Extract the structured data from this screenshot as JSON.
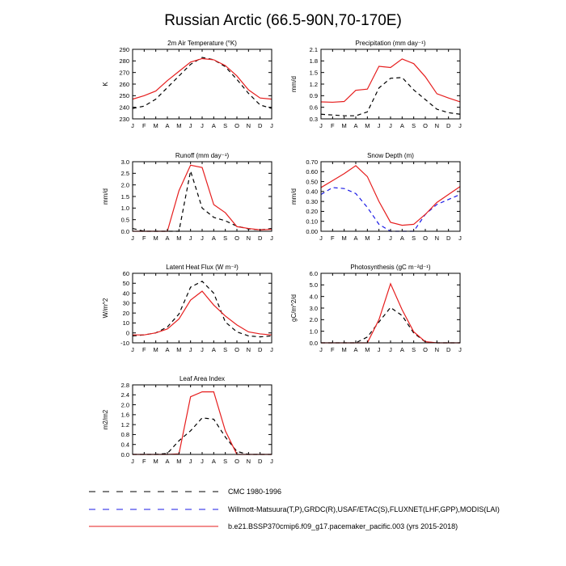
{
  "figure_title": "Russian Arctic (66.5-90N,70-170E)",
  "colors": {
    "cmc": "#000000",
    "obs": "#1a1ae6",
    "model": "#e61e1e"
  },
  "legend": [
    {
      "label": "CMC 1980-1996",
      "color": "#000000",
      "dash": "dashed"
    },
    {
      "label": "Willmott-Matsuura(T,P),GRDC(R),USAF/ETAC(S),FLUXNET(LHF,GPP),MODIS(LAI)",
      "color": "#1a1ae6",
      "dash": "dashed"
    },
    {
      "label": "b.e21.BSSP370cmip6.f09_g17.pacemaker_pacific.003 (yrs 2015-2018)",
      "color": "#e61e1e",
      "dash": "solid"
    }
  ],
  "chart_data": [
    {
      "type": "line",
      "id": "tsa",
      "title": "2m Air Temperature (°K)",
      "ylabel": "K",
      "categories": [
        "J",
        "F",
        "M",
        "A",
        "M",
        "J",
        "J",
        "A",
        "S",
        "O",
        "N",
        "D",
        "J"
      ],
      "ylim": [
        230,
        290
      ],
      "yticks": [
        230,
        240,
        250,
        260,
        270,
        280,
        290
      ],
      "ytick_labels": [
        "230",
        "240",
        "250",
        "260",
        "270",
        "280",
        "290"
      ],
      "series": [
        {
          "name": "CMC 1980-1996",
          "color": "#000000",
          "dash": "dashed",
          "values": [
            239,
            241,
            247,
            257,
            267,
            277,
            283,
            281,
            275,
            264,
            252,
            242,
            239
          ]
        },
        {
          "name": "model",
          "color": "#e61e1e",
          "dash": "solid",
          "values": [
            247,
            250,
            254,
            263,
            271,
            279,
            282,
            281,
            276,
            267,
            255,
            248,
            247
          ]
        }
      ]
    },
    {
      "type": "line",
      "id": "precip",
      "title": "Precipitation (mm day⁻¹)",
      "ylabel": "mm/d",
      "categories": [
        "J",
        "F",
        "M",
        "A",
        "M",
        "J",
        "J",
        "A",
        "S",
        "O",
        "N",
        "D",
        "J"
      ],
      "ylim": [
        0.3,
        2.1
      ],
      "yticks": [
        0.3,
        0.6,
        0.9,
        1.2,
        1.5,
        1.8,
        2.1
      ],
      "ytick_labels": [
        "0.3",
        "0.6",
        "0.9",
        "1.2",
        "1.5",
        "1.8",
        "2.1"
      ],
      "series": [
        {
          "name": "CMC 1980-1996",
          "color": "#000000",
          "dash": "dashed",
          "values": [
            0.42,
            0.4,
            0.38,
            0.38,
            0.48,
            1.1,
            1.35,
            1.37,
            1.05,
            0.8,
            0.55,
            0.46,
            0.42
          ]
        },
        {
          "name": "model",
          "color": "#e61e1e",
          "dash": "solid",
          "values": [
            0.74,
            0.73,
            0.75,
            1.04,
            1.07,
            1.66,
            1.63,
            1.85,
            1.73,
            1.39,
            0.95,
            0.84,
            0.74
          ]
        }
      ]
    },
    {
      "type": "line",
      "id": "runoff",
      "title": "Runoff (mm day⁻¹)",
      "ylabel": "mm/d",
      "categories": [
        "J",
        "F",
        "M",
        "A",
        "M",
        "J",
        "J",
        "A",
        "S",
        "O",
        "N",
        "D",
        "J"
      ],
      "ylim": [
        0.0,
        3.0
      ],
      "yticks": [
        0.0,
        0.5,
        1.0,
        1.5,
        2.0,
        2.5,
        3.0
      ],
      "ytick_labels": [
        "0.0",
        "0.5",
        "1.0",
        "1.5",
        "2.0",
        "2.5",
        "3.0"
      ],
      "series": [
        {
          "name": "CMC 1980-1996",
          "color": "#000000",
          "dash": "dashed",
          "values": [
            0.12,
            0.0,
            0.0,
            0.0,
            0.0,
            2.6,
            1.0,
            0.6,
            0.45,
            0.22,
            0.1,
            0.06,
            0.12
          ]
        },
        {
          "name": "model",
          "color": "#e61e1e",
          "dash": "solid",
          "values": [
            0.0,
            0.0,
            0.0,
            0.0,
            1.75,
            2.85,
            2.75,
            1.15,
            0.8,
            0.2,
            0.12,
            0.06,
            0.08
          ]
        }
      ]
    },
    {
      "type": "line",
      "id": "snowdp",
      "title": "Snow Depth (m)",
      "ylabel": "mm/d",
      "categories": [
        "J",
        "F",
        "M",
        "A",
        "M",
        "J",
        "J",
        "A",
        "S",
        "O",
        "N",
        "D",
        "J"
      ],
      "ylim": [
        0.0,
        0.7
      ],
      "yticks": [
        0.0,
        0.1,
        0.2,
        0.3,
        0.4,
        0.5,
        0.6,
        0.7
      ],
      "ytick_labels": [
        "0.00",
        "0.10",
        "0.20",
        "0.30",
        "0.40",
        "0.50",
        "0.60",
        "0.70"
      ],
      "series": [
        {
          "name": "Obs",
          "color": "#1a1ae6",
          "dash": "dashed",
          "values": [
            0.37,
            0.44,
            0.43,
            0.38,
            0.24,
            0.07,
            0.0,
            0.0,
            0.0,
            0.17,
            0.27,
            0.32,
            0.37
          ]
        },
        {
          "name": "model",
          "color": "#e61e1e",
          "dash": "solid",
          "values": [
            0.44,
            0.51,
            0.58,
            0.66,
            0.55,
            0.3,
            0.09,
            0.06,
            0.07,
            0.17,
            0.29,
            0.37,
            0.45
          ]
        }
      ]
    },
    {
      "type": "line",
      "id": "lhf",
      "title": "Latent Heat Flux (W m⁻²)",
      "ylabel": "W/m^2",
      "categories": [
        "J",
        "F",
        "M",
        "A",
        "M",
        "J",
        "J",
        "A",
        "S",
        "O",
        "N",
        "D",
        "J"
      ],
      "ylim": [
        -10,
        60
      ],
      "yticks": [
        -10,
        0,
        10,
        20,
        30,
        40,
        50,
        60
      ],
      "ytick_labels": [
        "-10",
        "0",
        "10",
        "20",
        "30",
        "40",
        "50",
        "60"
      ],
      "series": [
        {
          "name": "CMC 1980-1996",
          "color": "#000000",
          "dash": "dashed",
          "values": [
            -3,
            -2,
            0,
            6,
            19,
            46,
            52,
            40,
            11,
            1,
            -3,
            -4,
            -3
          ]
        },
        {
          "name": "model",
          "color": "#e61e1e",
          "dash": "solid",
          "values": [
            -2,
            -2,
            0,
            4,
            14,
            33,
            42,
            28,
            17,
            8,
            1,
            -1,
            -2
          ]
        }
      ]
    },
    {
      "type": "line",
      "id": "gpp",
      "title": "Photosynthesis (gC m⁻²d⁻¹)",
      "ylabel": "gC/m^2/d",
      "categories": [
        "J",
        "F",
        "M",
        "A",
        "M",
        "J",
        "J",
        "A",
        "S",
        "O",
        "N",
        "D",
        "J"
      ],
      "ylim": [
        0.0,
        6.0
      ],
      "yticks": [
        0.0,
        1.0,
        2.0,
        3.0,
        4.0,
        5.0,
        6.0
      ],
      "ytick_labels": [
        "0.0",
        "1.0",
        "2.0",
        "3.0",
        "4.0",
        "5.0",
        "6.0"
      ],
      "series": [
        {
          "name": "CMC 1980-1996",
          "color": "#000000",
          "dash": "dashed",
          "values": [
            0,
            0,
            0,
            0,
            0.5,
            1.8,
            3.05,
            2.35,
            0.85,
            0.08,
            0,
            0,
            0
          ]
        },
        {
          "name": "model",
          "color": "#e61e1e",
          "dash": "solid",
          "values": [
            0,
            0,
            0,
            0,
            0,
            2.0,
            5.1,
            2.85,
            0.95,
            0.1,
            0,
            0,
            0
          ]
        }
      ]
    },
    {
      "type": "line",
      "id": "lai",
      "title": "Leaf Area Index",
      "ylabel": "m2/m2",
      "categories": [
        "J",
        "F",
        "M",
        "A",
        "M",
        "J",
        "J",
        "A",
        "S",
        "O",
        "N",
        "D",
        "J"
      ],
      "ylim": [
        0.0,
        2.8
      ],
      "yticks": [
        0.0,
        0.4,
        0.8,
        1.2,
        1.6,
        2.0,
        2.4,
        2.8
      ],
      "ytick_labels": [
        "0.0",
        "0.4",
        "0.8",
        "1.2",
        "1.6",
        "2.0",
        "2.4",
        "2.8"
      ],
      "series": [
        {
          "name": "Obs",
          "color": "#000000",
          "dash": "dashed",
          "values": [
            0,
            0,
            0,
            0.04,
            0.55,
            0.95,
            1.47,
            1.42,
            0.7,
            0.12,
            0,
            0,
            0
          ]
        },
        {
          "name": "model",
          "color": "#e61e1e",
          "dash": "solid",
          "values": [
            0,
            0,
            0,
            0,
            0.02,
            2.32,
            2.52,
            2.52,
            0.95,
            0,
            0,
            0,
            0
          ]
        }
      ]
    }
  ]
}
